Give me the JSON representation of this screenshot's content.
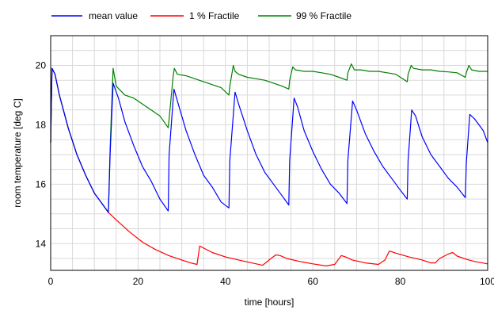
{
  "chart_data": {
    "type": "line",
    "title": "",
    "xlabel": "time [hours]",
    "ylabel": "room temperature [deg C]",
    "xlim": [
      0,
      100
    ],
    "ylim": [
      13.1,
      21.0
    ],
    "grid": true,
    "legend_position": "top",
    "x_ticks": [
      0,
      20,
      40,
      60,
      80,
      100
    ],
    "x_tick_labels": [
      "0",
      "20",
      "40",
      "60",
      "80",
      "100"
    ],
    "y_ticks": [
      14,
      16,
      18,
      20
    ],
    "y_tick_labels": [
      "14",
      "16",
      "18",
      "20"
    ],
    "series": [
      {
        "name": "mean value",
        "color": "#0000ff",
        "x": [
          0,
          0.3,
          1,
          2,
          4,
          6,
          8,
          10,
          12,
          13.2,
          13.6,
          14.0,
          14.3,
          15.5,
          17,
          19,
          21,
          23,
          25,
          26.9,
          27.1,
          28.2,
          29,
          31,
          33,
          35,
          37,
          39,
          40.8,
          41.0,
          42.2,
          43,
          45,
          47,
          49,
          51,
          53,
          54.5,
          54.7,
          55.7,
          56.5,
          58,
          60,
          62,
          64,
          66,
          67.8,
          68.0,
          69.1,
          70,
          72,
          74,
          76,
          78,
          80,
          81.6,
          81.8,
          82.6,
          83.5,
          85,
          87,
          89,
          91,
          93,
          94.9,
          95.1,
          95.9,
          97,
          98,
          99,
          100
        ],
        "values": [
          17.4,
          19.9,
          19.7,
          19.0,
          17.9,
          17.0,
          16.3,
          15.7,
          15.3,
          15.05,
          17.0,
          18.4,
          19.4,
          18.9,
          18.1,
          17.3,
          16.6,
          16.1,
          15.5,
          15.1,
          17.0,
          19.2,
          18.8,
          17.8,
          17.0,
          16.3,
          15.9,
          15.4,
          15.2,
          16.8,
          19.1,
          18.7,
          17.8,
          17.0,
          16.4,
          16.0,
          15.6,
          15.3,
          16.8,
          18.9,
          18.6,
          17.8,
          17.1,
          16.5,
          16.0,
          15.7,
          15.35,
          16.8,
          18.8,
          18.5,
          17.7,
          17.1,
          16.6,
          16.2,
          15.8,
          15.5,
          16.8,
          18.5,
          18.3,
          17.6,
          17.0,
          16.6,
          16.2,
          15.9,
          15.55,
          16.7,
          18.35,
          18.2,
          18.0,
          17.8,
          17.4
        ]
      },
      {
        "name": "1 % Fractile",
        "color": "#ff0000",
        "x": [
          0,
          0.3,
          1,
          2,
          4,
          6,
          8,
          10,
          12,
          13.2,
          15,
          18,
          21,
          24,
          27,
          30,
          32,
          33.5,
          34.1,
          35,
          37,
          40,
          43,
          46,
          48.5,
          50,
          51.5,
          52.5,
          54,
          57,
          60,
          63,
          65,
          66.5,
          67.5,
          69,
          72,
          75,
          76.5,
          77.5,
          79,
          82,
          85,
          87,
          88,
          89,
          91,
          92,
          93,
          95,
          97,
          100
        ],
        "values": [
          17.4,
          19.9,
          19.7,
          19.0,
          17.9,
          17.0,
          16.3,
          15.7,
          15.3,
          15.05,
          14.8,
          14.4,
          14.05,
          13.8,
          13.6,
          13.45,
          13.35,
          13.3,
          13.92,
          13.85,
          13.7,
          13.55,
          13.45,
          13.35,
          13.27,
          13.45,
          13.62,
          13.6,
          13.5,
          13.4,
          13.32,
          13.25,
          13.3,
          13.6,
          13.55,
          13.45,
          13.35,
          13.3,
          13.45,
          13.75,
          13.68,
          13.55,
          13.45,
          13.35,
          13.35,
          13.5,
          13.65,
          13.7,
          13.58,
          13.48,
          13.4,
          13.32
        ]
      },
      {
        "name": "99 % Fractile",
        "color": "#008000",
        "x": [
          0,
          0.3,
          1,
          2,
          4,
          6,
          8,
          10,
          12,
          13.2,
          13.6,
          14.0,
          14.3,
          15,
          17,
          19,
          21,
          23,
          25,
          26.9,
          27.1,
          28.0,
          28.3,
          29,
          31,
          33,
          35,
          37,
          39,
          40.8,
          41.0,
          41.8,
          42.2,
          43,
          45,
          47,
          49,
          51,
          53,
          54.5,
          54.7,
          55.4,
          56,
          58,
          60,
          62,
          64,
          66,
          67.8,
          68.0,
          68.8,
          69.5,
          71,
          73,
          75,
          77,
          79,
          81.6,
          81.8,
          82.5,
          83,
          85,
          87,
          89,
          91,
          93,
          94.9,
          95.1,
          95.7,
          96.3,
          98,
          100
        ],
        "values": [
          17.4,
          19.9,
          19.7,
          19.0,
          17.9,
          17.0,
          16.3,
          15.7,
          15.3,
          15.05,
          17.2,
          18.8,
          19.9,
          19.3,
          19.0,
          18.9,
          18.7,
          18.5,
          18.3,
          17.9,
          18.2,
          19.6,
          19.9,
          19.7,
          19.65,
          19.55,
          19.45,
          19.35,
          19.25,
          19.0,
          19.3,
          20.0,
          19.8,
          19.7,
          19.6,
          19.55,
          19.5,
          19.4,
          19.3,
          19.2,
          19.5,
          19.95,
          19.85,
          19.8,
          19.8,
          19.75,
          19.7,
          19.6,
          19.5,
          19.75,
          20.05,
          19.85,
          19.85,
          19.8,
          19.8,
          19.75,
          19.7,
          19.45,
          19.7,
          20.0,
          19.9,
          19.85,
          19.85,
          19.8,
          19.78,
          19.75,
          19.6,
          19.75,
          20.0,
          19.85,
          19.8,
          19.8
        ]
      }
    ]
  }
}
